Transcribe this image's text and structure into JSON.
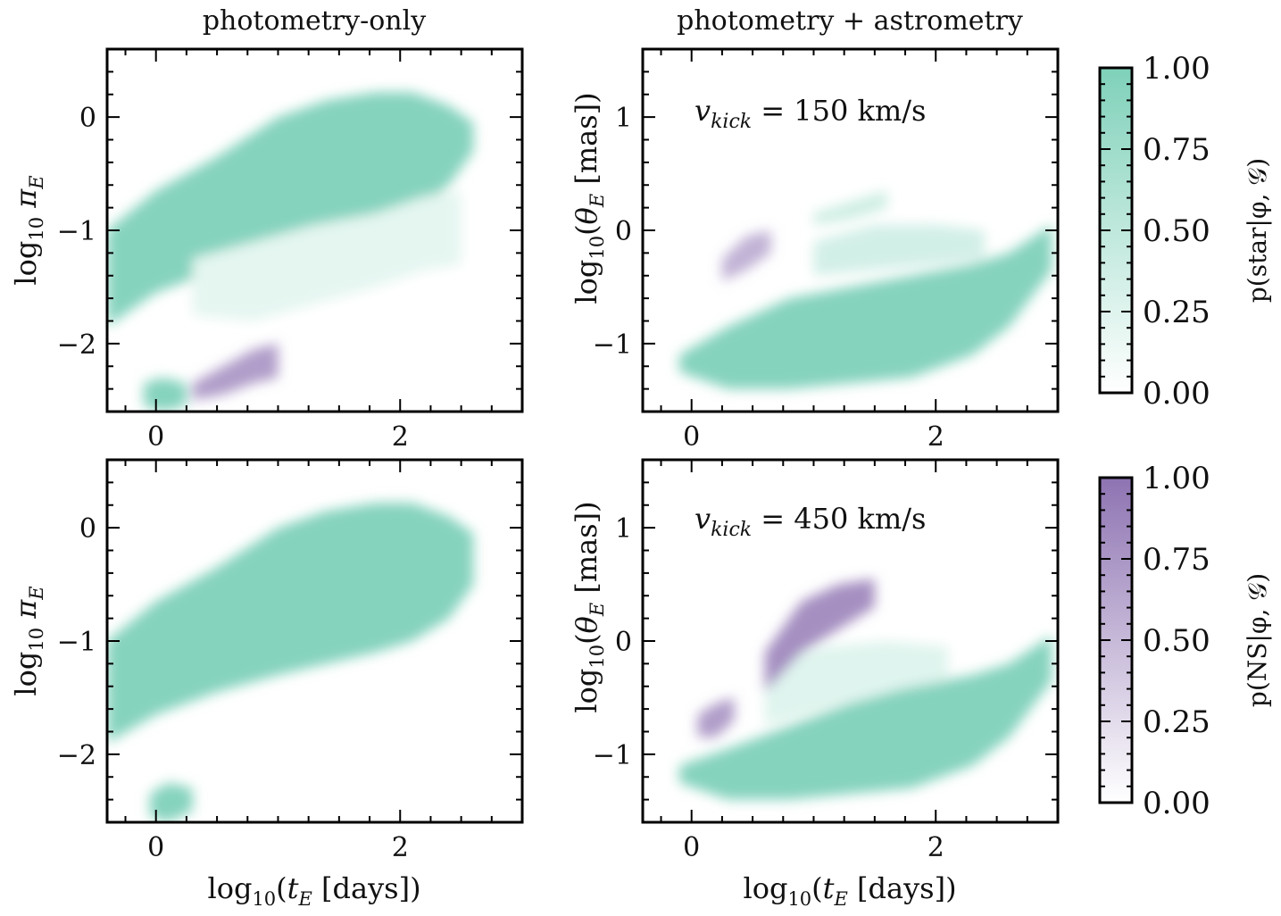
{
  "chart_data": [
    {
      "type": "heatmap",
      "panel": "top-left",
      "title": "photometry-only",
      "xlabel": "log10(tE [days])",
      "ylabel": "log10 πE",
      "xlim": [
        -0.4,
        3.0
      ],
      "ylim": [
        -2.6,
        0.6
      ],
      "xticks": [
        "0",
        "2"
      ],
      "yticks": [
        "0",
        "−1",
        "−2"
      ],
      "regions": [
        {
          "label": "star",
          "p": 0.95,
          "x": [
            -0.4,
            0.0,
            0.5,
            1.0,
            1.4,
            1.8,
            2.1,
            2.4,
            2.6
          ],
          "y_lo": [
            -1.85,
            -1.55,
            -1.35,
            -1.15,
            -1.0,
            -0.9,
            -0.85,
            -0.6,
            -0.3
          ],
          "y_hi": [
            -1.0,
            -0.65,
            -0.35,
            0.0,
            0.15,
            0.22,
            0.22,
            0.1,
            -0.05
          ]
        },
        {
          "label": "star",
          "p": 0.2,
          "x": [
            0.3,
            0.8,
            1.3,
            1.8,
            2.2,
            2.5
          ],
          "y_lo": [
            -1.75,
            -1.8,
            -1.65,
            -1.5,
            -1.35,
            -1.3
          ],
          "y_hi": [
            -1.25,
            -1.1,
            -0.95,
            -0.85,
            -0.7,
            -0.65
          ]
        },
        {
          "label": "NS",
          "p": 0.7,
          "x": [
            0.3,
            0.55,
            0.8,
            1.0
          ],
          "y_lo": [
            -2.5,
            -2.45,
            -2.35,
            -2.3
          ],
          "y_hi": [
            -2.35,
            -2.2,
            -2.05,
            -2.0
          ]
        },
        {
          "label": "star",
          "p": 0.95,
          "x": [
            -0.1,
            0.05,
            0.25
          ],
          "y_lo": [
            -2.55,
            -2.6,
            -2.55
          ],
          "y_hi": [
            -2.35,
            -2.3,
            -2.35
          ]
        }
      ]
    },
    {
      "type": "heatmap",
      "panel": "top-right",
      "title": "photometry + astrometry",
      "annotation": "v_kick = 150 km/s",
      "xlabel": "log10(tE [days])",
      "ylabel": "log10(θE [mas])",
      "xlim": [
        -0.4,
        3.0
      ],
      "ylim": [
        -1.6,
        1.6
      ],
      "xticks": [
        "0",
        "2"
      ],
      "yticks": [
        "1",
        "0",
        "−1"
      ],
      "regions": [
        {
          "label": "star",
          "p": 0.95,
          "x": [
            -0.1,
            0.3,
            0.8,
            1.3,
            1.8,
            2.3,
            2.6,
            2.95
          ],
          "y_lo": [
            -1.25,
            -1.4,
            -1.4,
            -1.35,
            -1.3,
            -1.1,
            -0.85,
            -0.35
          ],
          "y_hi": [
            -1.1,
            -0.85,
            -0.6,
            -0.5,
            -0.4,
            -0.3,
            -0.2,
            0.05
          ]
        },
        {
          "label": "star",
          "p": 0.35,
          "x": [
            1.0,
            1.5,
            2.0,
            2.4
          ],
          "y_lo": [
            -0.4,
            -0.35,
            -0.3,
            -0.25
          ],
          "y_hi": [
            -0.1,
            0.05,
            0.05,
            0.0
          ]
        },
        {
          "label": "NS",
          "p": 0.55,
          "x": [
            0.25,
            0.45,
            0.65
          ],
          "y_lo": [
            -0.45,
            -0.35,
            -0.2
          ],
          "y_hi": [
            -0.25,
            -0.05,
            0.0
          ]
        },
        {
          "label": "star",
          "p": 0.4,
          "x": [
            1.0,
            1.3,
            1.6
          ],
          "y_lo": [
            0.05,
            0.1,
            0.2
          ],
          "y_hi": [
            0.15,
            0.25,
            0.35
          ]
        }
      ]
    },
    {
      "type": "heatmap",
      "panel": "bottom-left",
      "xlabel": "log10(tE [days])",
      "ylabel": "log10 πE",
      "xlim": [
        -0.4,
        3.0
      ],
      "ylim": [
        -2.6,
        0.6
      ],
      "xticks": [
        "0",
        "2"
      ],
      "yticks": [
        "0",
        "−1",
        "−2"
      ],
      "regions": [
        {
          "label": "star",
          "p": 0.95,
          "x": [
            -0.4,
            0.0,
            0.5,
            1.0,
            1.4,
            1.8,
            2.1,
            2.4,
            2.6
          ],
          "y_lo": [
            -1.9,
            -1.65,
            -1.45,
            -1.3,
            -1.2,
            -1.1,
            -1.0,
            -0.8,
            -0.5
          ],
          "y_hi": [
            -1.0,
            -0.65,
            -0.35,
            0.0,
            0.15,
            0.22,
            0.22,
            0.1,
            -0.05
          ]
        },
        {
          "label": "star",
          "p": 0.95,
          "x": [
            -0.05,
            0.1,
            0.3
          ],
          "y_lo": [
            -2.55,
            -2.6,
            -2.5
          ],
          "y_hi": [
            -2.35,
            -2.25,
            -2.3
          ]
        }
      ]
    },
    {
      "type": "heatmap",
      "panel": "bottom-right",
      "annotation": "v_kick = 450 km/s",
      "xlabel": "log10(tE [days])",
      "ylabel": "log10(θE [mas])",
      "xlim": [
        -0.4,
        3.0
      ],
      "ylim": [
        -1.6,
        1.6
      ],
      "xticks": [
        "0",
        "2"
      ],
      "yticks": [
        "1",
        "0",
        "−1"
      ],
      "regions": [
        {
          "label": "star",
          "p": 0.95,
          "x": [
            -0.1,
            0.3,
            0.8,
            1.3,
            1.8,
            2.3,
            2.6,
            2.95
          ],
          "y_lo": [
            -1.25,
            -1.4,
            -1.4,
            -1.35,
            -1.3,
            -1.1,
            -0.85,
            -0.35
          ],
          "y_hi": [
            -1.1,
            -0.95,
            -0.75,
            -0.55,
            -0.4,
            -0.3,
            -0.2,
            0.05
          ]
        },
        {
          "label": "star",
          "p": 0.25,
          "x": [
            0.6,
            1.1,
            1.6,
            2.1
          ],
          "y_lo": [
            -0.75,
            -0.6,
            -0.45,
            -0.35
          ],
          "y_hi": [
            -0.2,
            -0.05,
            0.0,
            -0.05
          ]
        },
        {
          "label": "NS",
          "p": 0.8,
          "x": [
            0.6,
            0.9,
            1.2,
            1.5
          ],
          "y_lo": [
            -0.45,
            -0.1,
            0.1,
            0.3
          ],
          "y_hi": [
            -0.1,
            0.35,
            0.5,
            0.55
          ]
        },
        {
          "label": "NS",
          "p": 0.7,
          "x": [
            0.05,
            0.2,
            0.35
          ],
          "y_lo": [
            -0.85,
            -0.85,
            -0.7
          ],
          "y_hi": [
            -0.65,
            -0.55,
            -0.5
          ]
        }
      ]
    }
  ],
  "colorbars": [
    {
      "label": "p(star|φ, 𝒢)",
      "ticks": [
        "1.00",
        "0.75",
        "0.50",
        "0.25",
        "0.00"
      ],
      "range": [
        0,
        1
      ],
      "color": "#7fd1b9"
    },
    {
      "label": "p(NS|φ, 𝒢)",
      "ticks": [
        "1.00",
        "0.75",
        "0.50",
        "0.25",
        "0.00"
      ],
      "range": [
        0,
        1
      ],
      "color": "#8e73b2"
    }
  ],
  "colors": {
    "star": "#7fd1b9",
    "NS": "#8e73b2"
  }
}
